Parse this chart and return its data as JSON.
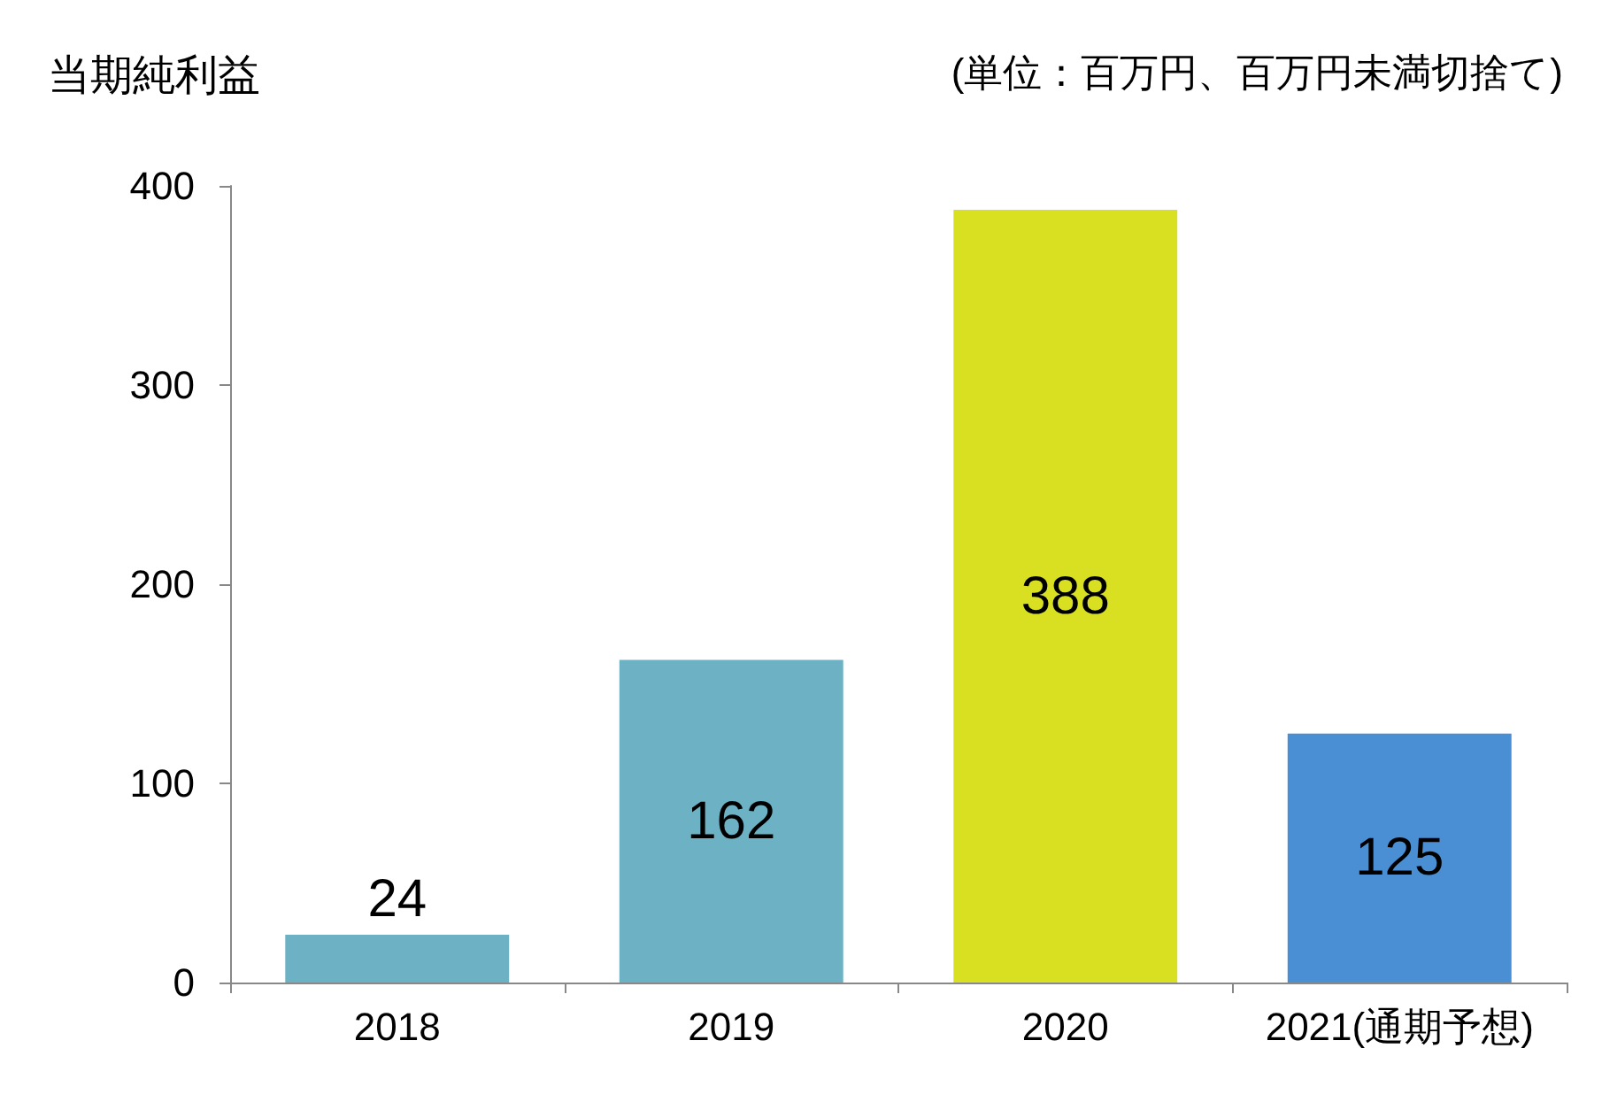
{
  "chart_data": {
    "type": "bar",
    "title": "当期純利益",
    "annotations": [
      "(単位：百万円、百万円未満切捨て)"
    ],
    "categories": [
      "2018",
      "2019",
      "2020",
      "2021(通期予想)"
    ],
    "values": [
      24,
      162,
      388,
      125
    ],
    "colors": [
      "#6cb2c4",
      "#6cb2c4",
      "#d9e021",
      "#4a8fd4"
    ],
    "ylim": [
      0,
      400
    ],
    "yticks": [
      0,
      100,
      200,
      300,
      400
    ],
    "data_labels": true,
    "grid": false
  }
}
